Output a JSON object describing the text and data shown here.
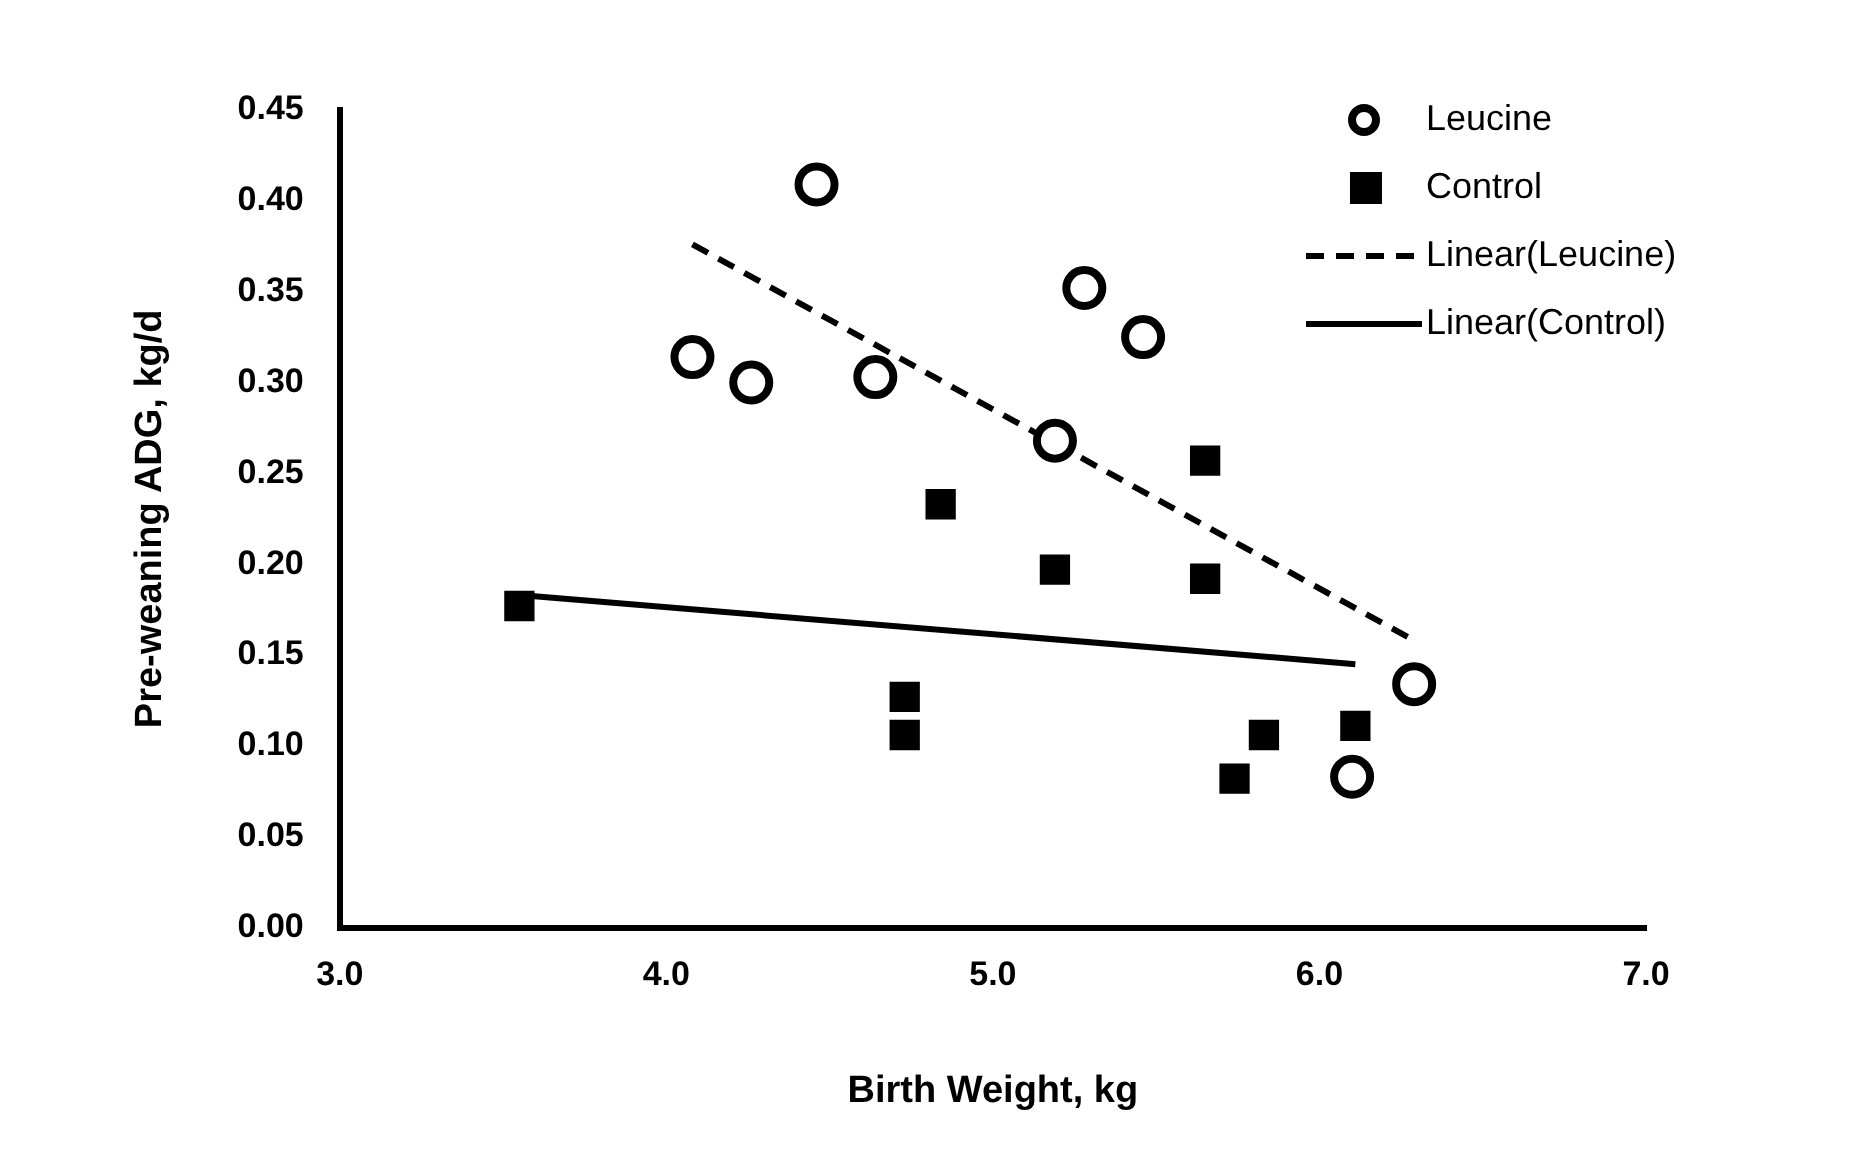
{
  "chart_data": {
    "type": "scatter",
    "xlabel": "Birth Weight, kg",
    "ylabel": "Pre-weaning ADG, kg/d",
    "xlim": [
      3,
      7
    ],
    "xticks": [
      {
        "value": 3,
        "label": "3.0"
      },
      {
        "value": 4,
        "label": "4.0"
      },
      {
        "value": 5,
        "label": "5.0"
      },
      {
        "value": 6,
        "label": "6.0"
      },
      {
        "value": 7,
        "label": "7.0"
      }
    ],
    "ylim": [
      0,
      0.45
    ],
    "yticks": [
      {
        "value": 0,
        "label": "0.00"
      },
      {
        "value": 0.05,
        "label": "0.05"
      },
      {
        "value": 0.1,
        "label": "0.10"
      },
      {
        "value": 0.15,
        "label": "0.15"
      },
      {
        "value": 0.2,
        "label": "0.20"
      },
      {
        "value": 0.25,
        "label": "0.25"
      },
      {
        "value": 0.3,
        "label": "0.30"
      },
      {
        "value": 0.35,
        "label": "0.35"
      },
      {
        "value": 0.4,
        "label": "0.40"
      },
      {
        "value": 0.45,
        "label": "0.45"
      }
    ],
    "grid": false,
    "legend": "top right",
    "series": [
      {
        "name": "Leucine",
        "type": "scatter",
        "marker": "circle",
        "color": "#000000",
        "x": [
          4.08,
          4.26,
          4.46,
          4.64,
          5.19,
          5.28,
          5.46,
          6.1,
          6.29
        ],
        "values": [
          0.314,
          0.3,
          0.409,
          0.303,
          0.268,
          0.352,
          0.325,
          0.083,
          0.134
        ]
      },
      {
        "name": "Control",
        "type": "scatter",
        "marker": "square",
        "color": "#000000",
        "x": [
          3.55,
          4.73,
          4.73,
          4.84,
          5.19,
          5.65,
          5.65,
          5.74,
          5.83,
          6.11
        ],
        "values": [
          0.177,
          0.127,
          0.106,
          0.233,
          0.197,
          0.257,
          0.192,
          0.082,
          0.106,
          0.111
        ]
      },
      {
        "name": "Linear(Leucine)",
        "type": "line",
        "marker": "none",
        "line_style": "dashed",
        "color": "#000000",
        "x": [
          4.08,
          6.27
        ],
        "values": [
          0.376,
          0.16
        ]
      },
      {
        "name": "Linear(Control)",
        "type": "line",
        "marker": "none",
        "line_style": "solid",
        "color": "#000000",
        "x": [
          3.55,
          6.11
        ],
        "values": [
          0.183,
          0.145
        ]
      }
    ]
  }
}
